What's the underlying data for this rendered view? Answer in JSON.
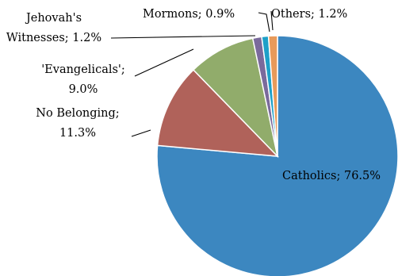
{
  "chart_data": {
    "type": "pie",
    "title": "",
    "start_angle_deg": 0,
    "direction": "clockwise",
    "slices": [
      {
        "name": "Catholics",
        "value": 76.5,
        "label_text": "Catholics; 76.5%",
        "color": "#3c87c0"
      },
      {
        "name": "No Belonging",
        "value": 11.3,
        "label_text": "No Belonging; 11.3%",
        "color": "#b0625a"
      },
      {
        "name": "'Evangelicals'",
        "value": 9.0,
        "label_text": "'Evangelicals'; 9.0%",
        "color": "#91ac6b"
      },
      {
        "name": "Jehovah's Witnesses",
        "value": 1.2,
        "label_text": "Jehovah's Witnesses; 1.2%",
        "color": "#7a6a9c"
      },
      {
        "name": "Mormons",
        "value": 0.9,
        "label_text": "Mormons; 0.9%",
        "color": "#1ea0c8"
      },
      {
        "name": "Others",
        "value": 1.2,
        "label_text": "Others; 1.2%",
        "color": "#e89a5a"
      }
    ]
  }
}
